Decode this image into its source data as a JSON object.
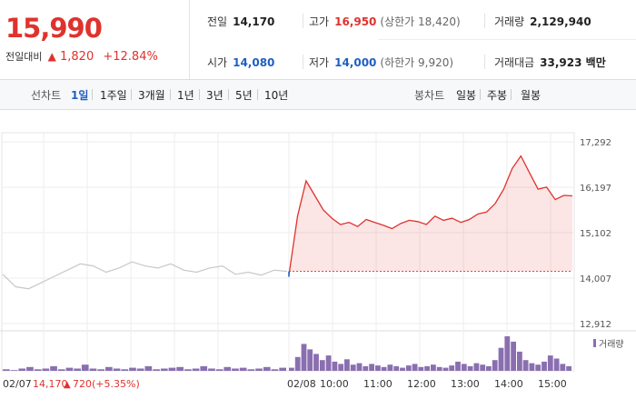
{
  "quote": {
    "price": "15,990",
    "change_label": "전일대비",
    "change_arrow": "▲",
    "change": "1,820",
    "change_pct": "+12.84%"
  },
  "stats": {
    "prev_close": {
      "label": "전일",
      "value": "14,170"
    },
    "high": {
      "label": "고가",
      "value": "16,950",
      "sub": "(상한가 18,420)"
    },
    "volume": {
      "label": "거래량",
      "value": "2,129,940"
    },
    "open": {
      "label": "시가",
      "value": "14,080"
    },
    "low": {
      "label": "저가",
      "value": "14,000",
      "sub": "(하한가 9,920)"
    },
    "amount": {
      "label": "거래대금",
      "value": "33,923 백만"
    }
  },
  "tabs": {
    "period_label": "선차트",
    "periods": [
      "1일",
      "1주일",
      "3개월",
      "1년",
      "3년",
      "5년",
      "10년"
    ],
    "active_period": "1일",
    "candle_label": "봉차트",
    "candles": [
      "일봉",
      "주봉",
      "월봉"
    ]
  },
  "footer": {
    "prev_date": "02/07",
    "prev_price": "14,170",
    "prev_arrow": "▲",
    "prev_change": "720",
    "prev_pct": "(+5.35%)",
    "volume_legend": "거래량"
  },
  "colors": {
    "up": "#e0322d",
    "down": "#1f5fc4",
    "prev_line": "#c8c8c8",
    "volume": "#8a6fb0"
  },
  "chart_data": {
    "type": "line",
    "y_ticks": [
      "17,292",
      "16,197",
      "15,102",
      "14,007",
      "12,912"
    ],
    "y_tick_values": [
      17292,
      16197,
      15102,
      14007,
      12912
    ],
    "ylim": [
      12912,
      17292
    ],
    "x_ticks": [
      "02/08",
      "10:00",
      "11:00",
      "12:00",
      "13:00",
      "14:00",
      "15:00"
    ],
    "baseline": 14170,
    "series": [
      {
        "x": [
          "09:00",
          "09:05",
          "09:10",
          "09:20",
          "09:30",
          "09:40",
          "09:50",
          "10:00",
          "10:15",
          "10:30",
          "10:45",
          "11:00",
          "11:15",
          "11:30",
          "11:45",
          "12:00",
          "12:15",
          "12:30",
          "12:45",
          "13:00",
          "13:15",
          "13:30",
          "13:45",
          "14:00",
          "14:05",
          "14:10",
          "14:15",
          "14:20",
          "14:30",
          "14:40",
          "14:50",
          "15:00",
          "15:10",
          "15:20"
        ],
        "values": [
          14080,
          15500,
          16350,
          16000,
          15650,
          15450,
          15300,
          15350,
          15250,
          15420,
          15350,
          15280,
          15200,
          15320,
          15400,
          15370,
          15300,
          15500,
          15400,
          15450,
          15350,
          15420,
          15550,
          15600,
          15800,
          16150,
          16650,
          16950,
          16550,
          16150,
          16200,
          15900,
          16000,
          15990
        ]
      }
    ],
    "prev_day": {
      "values": [
        14100,
        13800,
        13750,
        13900,
        14050,
        14200,
        14350,
        14300,
        14150,
        14250,
        14400,
        14300,
        14250,
        14350,
        14200,
        14150,
        14250,
        14300,
        14100,
        14150,
        14080,
        14200,
        14170
      ]
    },
    "volume": {
      "prev_day": [
        2,
        1,
        3,
        5,
        2,
        3,
        6,
        2,
        4,
        3,
        8,
        3,
        2,
        5,
        3,
        2,
        4,
        3,
        6,
        2,
        3,
        4,
        5,
        2,
        3,
        6,
        3,
        2,
        5,
        3,
        4,
        2,
        3,
        5,
        2,
        4
      ],
      "today": [
        4,
        18,
        35,
        28,
        22,
        14,
        20,
        12,
        9,
        15,
        8,
        10,
        6,
        9,
        7,
        5,
        8,
        6,
        4,
        7,
        9,
        5,
        6,
        8,
        5,
        4,
        7,
        12,
        9,
        6,
        10,
        8,
        6,
        14,
        30,
        45,
        38,
        25,
        14,
        10,
        8,
        12,
        20,
        16,
        9,
        6
      ]
    }
  }
}
